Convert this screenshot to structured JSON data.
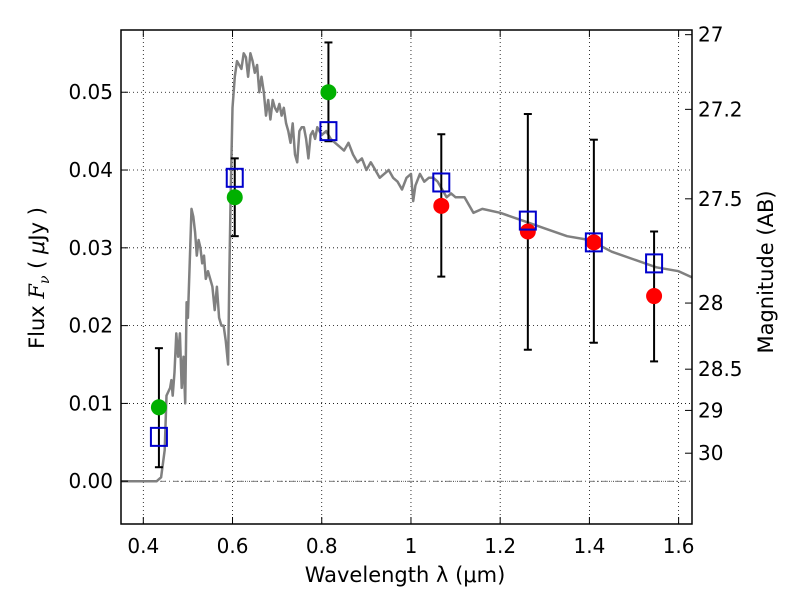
{
  "chart_data": {
    "type": "scatter",
    "xlabel": "Wavelength  λ (μm)",
    "ylabel": "Flux  F_ν  ( μJy )",
    "ylabel_parts": {
      "prefix": "Flux  ",
      "symbol": "F",
      "subscript": "ν",
      "unit_open": "  ( ",
      "unit_mu": "μ",
      "unit_close": "Jy )"
    },
    "y2label": "Magnitude (AB)",
    "xlim": [
      0.35,
      1.63
    ],
    "ylim": [
      -0.0055,
      0.058
    ],
    "grid": true,
    "x_ticks": [
      0.4,
      0.6,
      0.8,
      1.0,
      1.2,
      1.4,
      1.6
    ],
    "x_tick_labels": [
      "0.4",
      "0.6",
      "0.8",
      "1",
      "1.2",
      "1.4",
      "1.6"
    ],
    "y_ticks": [
      0.0,
      0.01,
      0.02,
      0.03,
      0.04,
      0.05
    ],
    "y_tick_labels": [
      "0.00",
      "0.01",
      "0.02",
      "0.03",
      "0.04",
      "0.05"
    ],
    "y2_ticks": [
      {
        "label": "27",
        "flux": 0.0574
      },
      {
        "label": "27.2",
        "flux": 0.0478
      },
      {
        "label": "27.5",
        "flux": 0.0363
      },
      {
        "label": "28",
        "flux": 0.0229
      },
      {
        "label": "28.5",
        "flux": 0.0144
      },
      {
        "label": "29",
        "flux": 0.0091
      },
      {
        "label": "30",
        "flux": 0.0036
      }
    ],
    "colors": {
      "model": "#808080",
      "green": "#00b000",
      "red": "#ff0000",
      "box": "#0000cc",
      "error": "#000000"
    },
    "series": [
      {
        "kind": "model-line",
        "x": [
          0.35,
          0.38,
          0.41,
          0.43,
          0.44,
          0.448,
          0.452,
          0.46,
          0.463,
          0.466,
          0.47,
          0.474,
          0.478,
          0.482,
          0.486,
          0.49,
          0.494,
          0.497,
          0.5,
          0.504,
          0.508,
          0.512,
          0.516,
          0.52,
          0.524,
          0.528,
          0.532,
          0.536,
          0.54,
          0.545,
          0.55,
          0.555,
          0.56,
          0.565,
          0.57,
          0.575,
          0.58,
          0.585,
          0.59,
          0.593,
          0.596,
          0.6,
          0.605,
          0.61,
          0.615,
          0.62,
          0.625,
          0.63,
          0.635,
          0.64,
          0.645,
          0.65,
          0.655,
          0.66,
          0.665,
          0.67,
          0.675,
          0.68,
          0.685,
          0.69,
          0.695,
          0.7,
          0.705,
          0.71,
          0.715,
          0.72,
          0.725,
          0.73,
          0.735,
          0.74,
          0.745,
          0.75,
          0.755,
          0.76,
          0.765,
          0.77,
          0.775,
          0.78,
          0.785,
          0.79,
          0.8,
          0.81,
          0.82,
          0.83,
          0.84,
          0.85,
          0.86,
          0.87,
          0.88,
          0.89,
          0.9,
          0.91,
          0.92,
          0.93,
          0.94,
          0.95,
          0.96,
          0.97,
          0.98,
          0.99,
          1.0,
          1.005,
          1.01,
          1.02,
          1.03,
          1.04,
          1.05,
          1.06,
          1.07,
          1.08,
          1.09,
          1.1,
          1.12,
          1.14,
          1.16,
          1.2,
          1.25,
          1.3,
          1.35,
          1.4,
          1.45,
          1.5,
          1.55,
          1.6,
          1.63
        ],
        "y": [
          0.0,
          0.0,
          0.0,
          0.0,
          0.0005,
          0.004,
          0.011,
          0.012,
          0.013,
          0.011,
          0.014,
          0.019,
          0.016,
          0.019,
          0.012,
          0.016,
          0.01,
          0.023,
          0.021,
          0.028,
          0.035,
          0.034,
          0.032,
          0.029,
          0.031,
          0.03,
          0.028,
          0.029,
          0.026,
          0.027,
          0.026,
          0.025,
          0.022,
          0.025,
          0.021,
          0.02,
          0.02,
          0.018,
          0.015,
          0.027,
          0.037,
          0.048,
          0.052,
          0.054,
          0.0535,
          0.053,
          0.055,
          0.0545,
          0.052,
          0.055,
          0.054,
          0.0525,
          0.0535,
          0.05,
          0.052,
          0.05,
          0.047,
          0.049,
          0.0465,
          0.049,
          0.048,
          0.0475,
          0.0485,
          0.047,
          0.048,
          0.046,
          0.045,
          0.0435,
          0.046,
          0.042,
          0.041,
          0.045,
          0.0455,
          0.0455,
          0.044,
          0.0415,
          0.0445,
          0.045,
          0.044,
          0.0455,
          0.0445,
          0.045,
          0.044,
          0.0435,
          0.043,
          0.0425,
          0.0435,
          0.042,
          0.041,
          0.0415,
          0.04,
          0.041,
          0.04,
          0.039,
          0.0395,
          0.04,
          0.039,
          0.0385,
          0.0375,
          0.039,
          0.0395,
          0.036,
          0.038,
          0.0395,
          0.0385,
          0.039,
          0.039,
          0.0385,
          0.0375,
          0.0365,
          0.037,
          0.0365,
          0.0365,
          0.0345,
          0.035,
          0.0345,
          0.0335,
          0.0325,
          0.0315,
          0.031,
          0.0295,
          0.0285,
          0.0275,
          0.027,
          0.0262
        ]
      },
      {
        "kind": "observed-green",
        "x": [
          0.435,
          0.605,
          0.815
        ],
        "y": [
          0.0095,
          0.0365,
          0.05
        ],
        "err_low": [
          0.0018,
          0.0315,
          0.0437
        ],
        "err_high": [
          0.0171,
          0.0415,
          0.0564
        ]
      },
      {
        "kind": "observed-red",
        "x": [
          1.068,
          1.262,
          1.41,
          1.545
        ],
        "y": [
          0.0354,
          0.0321,
          0.0307,
          0.0238
        ],
        "err_low": [
          0.0263,
          0.0169,
          0.0178,
          0.0154
        ],
        "err_high": [
          0.0446,
          0.0472,
          0.0439,
          0.0321
        ]
      },
      {
        "kind": "model-box",
        "x": [
          0.435,
          0.605,
          0.815,
          1.068,
          1.262,
          1.41,
          1.545
        ],
        "y": [
          0.0057,
          0.039,
          0.045,
          0.0384,
          0.0335,
          0.0307,
          0.028
        ]
      }
    ]
  }
}
